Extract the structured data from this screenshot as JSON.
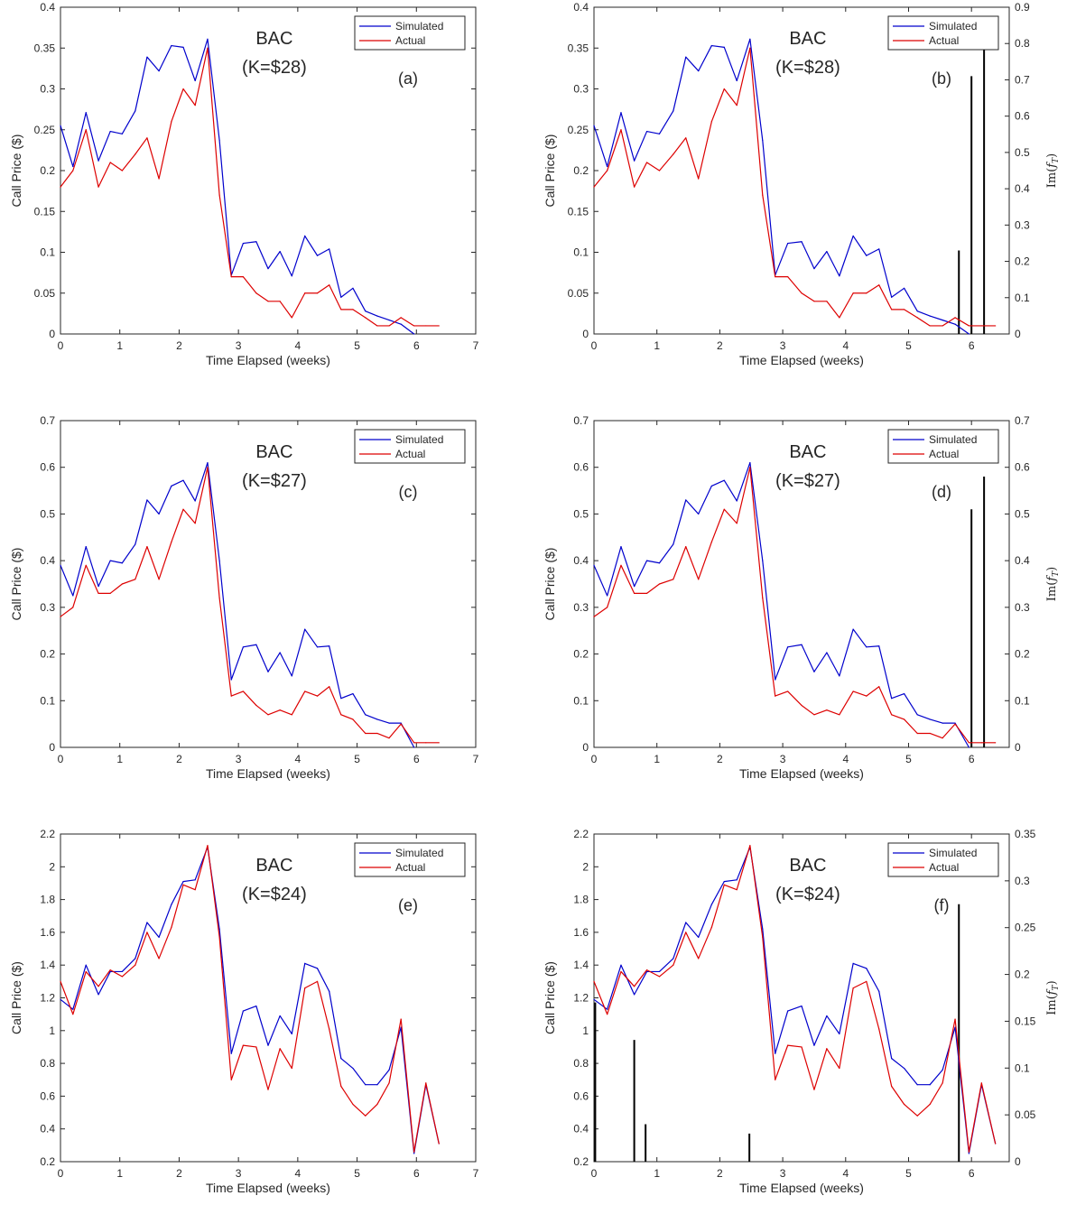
{
  "chart_data": [
    {
      "type": "line",
      "panel_label": "(a)",
      "title": "BAC",
      "subtitle": "(K=$28)",
      "xlabel": "Time Elapsed (weeks)",
      "ylabel": "Call Price ($)",
      "xlim": [
        0,
        7
      ],
      "ylim": [
        0,
        0.4
      ],
      "xticks": [
        "0",
        "1",
        "2",
        "3",
        "4",
        "5",
        "6",
        "7"
      ],
      "yticks": [
        "0",
        "0.05",
        "0.1",
        "0.15",
        "0.2",
        "0.25",
        "0.3",
        "0.35",
        "0.4"
      ],
      "legend_position": "top-right",
      "x": [
        0,
        0.21,
        0.43,
        0.64,
        0.84,
        1.04,
        1.26,
        1.46,
        1.66,
        1.87,
        2.07,
        2.27,
        2.48,
        2.68,
        2.88,
        3.08,
        3.3,
        3.5,
        3.7,
        3.9,
        4.12,
        4.33,
        4.53,
        4.73,
        4.93,
        5.14,
        5.34,
        5.54,
        5.74,
        5.96,
        6.16,
        6.38
      ],
      "series": [
        {
          "name": "Simulated",
          "color": "#0000cc",
          "values": [
            0.255,
            0.205,
            0.271,
            0.212,
            0.248,
            0.245,
            0.273,
            0.339,
            0.322,
            0.353,
            0.351,
            0.31,
            0.361,
            0.237,
            0.072,
            0.111,
            0.113,
            0.08,
            0.101,
            0.071,
            0.12,
            0.096,
            0.104,
            0.045,
            0.056,
            0.028,
            0.022,
            0.017,
            0.012,
            0.0,
            null,
            null
          ]
        },
        {
          "name": "Actual",
          "color": "#dd0000",
          "values": [
            0.18,
            0.2,
            0.25,
            0.18,
            0.21,
            0.2,
            0.22,
            0.24,
            0.19,
            0.26,
            0.3,
            0.28,
            0.35,
            0.17,
            0.07,
            0.07,
            0.05,
            0.04,
            0.04,
            0.02,
            0.05,
            0.05,
            0.06,
            0.03,
            0.03,
            0.02,
            0.01,
            0.01,
            0.02,
            0.01,
            0.01,
            0.01
          ]
        }
      ]
    },
    {
      "type": "line",
      "panel_label": "(b)",
      "title": "BAC",
      "subtitle": "(K=$28)",
      "xlabel": "Time Elapsed (weeks)",
      "ylabel": "Call Price ($)",
      "y2label": "Im(f_T)",
      "xlim": [
        0,
        6.6
      ],
      "ylim": [
        0,
        0.4
      ],
      "y2lim": [
        0,
        0.9
      ],
      "xticks": [
        "0",
        "1",
        "2",
        "3",
        "4",
        "5",
        "6"
      ],
      "yticks": [
        "0",
        "0.05",
        "0.1",
        "0.15",
        "0.2",
        "0.25",
        "0.3",
        "0.35",
        "0.4"
      ],
      "y2ticks": [
        "0",
        "0.1",
        "0.2",
        "0.3",
        "0.4",
        "0.5",
        "0.6",
        "0.7",
        "0.8",
        "0.9"
      ],
      "legend_position": "top-right",
      "x": [
        0,
        0.21,
        0.43,
        0.64,
        0.84,
        1.04,
        1.26,
        1.46,
        1.66,
        1.87,
        2.07,
        2.27,
        2.48,
        2.68,
        2.88,
        3.08,
        3.3,
        3.5,
        3.7,
        3.9,
        4.12,
        4.33,
        4.53,
        4.73,
        4.93,
        5.14,
        5.34,
        5.54,
        5.74,
        5.96,
        6.16,
        6.38
      ],
      "series": [
        {
          "name": "Simulated",
          "color": "#0000cc",
          "values": [
            0.255,
            0.205,
            0.271,
            0.212,
            0.248,
            0.245,
            0.273,
            0.339,
            0.322,
            0.353,
            0.351,
            0.31,
            0.361,
            0.237,
            0.072,
            0.111,
            0.113,
            0.08,
            0.101,
            0.071,
            0.12,
            0.096,
            0.104,
            0.045,
            0.056,
            0.028,
            0.022,
            0.017,
            0.012,
            0.0,
            null,
            null
          ]
        },
        {
          "name": "Actual",
          "color": "#dd0000",
          "values": [
            0.18,
            0.2,
            0.25,
            0.18,
            0.21,
            0.2,
            0.22,
            0.24,
            0.19,
            0.26,
            0.3,
            0.28,
            0.35,
            0.17,
            0.07,
            0.07,
            0.05,
            0.04,
            0.04,
            0.02,
            0.05,
            0.05,
            0.06,
            0.03,
            0.03,
            0.02,
            0.01,
            0.01,
            0.02,
            0.01,
            0.01,
            0.01
          ]
        }
      ],
      "stems": {
        "color": "#000000",
        "x": [
          5.8,
          6.0,
          6.2
        ],
        "values": [
          0.23,
          0.71,
          0.79
        ]
      }
    },
    {
      "type": "line",
      "panel_label": "(c)",
      "title": "BAC",
      "subtitle": "(K=$27)",
      "xlabel": "Time Elapsed (weeks)",
      "ylabel": "Call Price ($)",
      "xlim": [
        0,
        7
      ],
      "ylim": [
        0,
        0.7
      ],
      "xticks": [
        "0",
        "1",
        "2",
        "3",
        "4",
        "5",
        "6",
        "7"
      ],
      "yticks": [
        "0",
        "0.1",
        "0.2",
        "0.3",
        "0.4",
        "0.5",
        "0.6",
        "0.7"
      ],
      "legend_position": "top-right",
      "x": [
        0,
        0.21,
        0.43,
        0.64,
        0.84,
        1.04,
        1.26,
        1.46,
        1.66,
        1.87,
        2.07,
        2.27,
        2.48,
        2.68,
        2.88,
        3.08,
        3.3,
        3.5,
        3.7,
        3.9,
        4.12,
        4.33,
        4.53,
        4.73,
        4.93,
        5.14,
        5.34,
        5.54,
        5.74,
        5.96,
        6.16,
        6.38
      ],
      "series": [
        {
          "name": "Simulated",
          "color": "#0000cc",
          "values": [
            0.39,
            0.325,
            0.43,
            0.345,
            0.4,
            0.395,
            0.435,
            0.53,
            0.5,
            0.56,
            0.572,
            0.528,
            0.61,
            0.4,
            0.145,
            0.215,
            0.22,
            0.162,
            0.203,
            0.153,
            0.253,
            0.215,
            0.217,
            0.105,
            0.115,
            0.07,
            0.06,
            0.052,
            0.052,
            0.0,
            null,
            null
          ]
        },
        {
          "name": "Actual",
          "color": "#dd0000",
          "values": [
            0.28,
            0.3,
            0.39,
            0.33,
            0.33,
            0.35,
            0.36,
            0.43,
            0.36,
            0.44,
            0.51,
            0.48,
            0.6,
            0.32,
            0.11,
            0.12,
            0.09,
            0.07,
            0.08,
            0.07,
            0.12,
            0.11,
            0.13,
            0.07,
            0.06,
            0.03,
            0.03,
            0.02,
            0.05,
            0.01,
            0.01,
            0.01
          ]
        }
      ]
    },
    {
      "type": "line",
      "panel_label": "(d)",
      "title": "BAC",
      "subtitle": "(K=$27)",
      "xlabel": "Time Elapsed (weeks)",
      "ylabel": "Call Price ($)",
      "y2label": "Im(f_T)",
      "xlim": [
        0,
        6.6
      ],
      "ylim": [
        0,
        0.7
      ],
      "y2lim": [
        0,
        0.7
      ],
      "xticks": [
        "0",
        "1",
        "2",
        "3",
        "4",
        "5",
        "6"
      ],
      "yticks": [
        "0",
        "0.1",
        "0.2",
        "0.3",
        "0.4",
        "0.5",
        "0.6",
        "0.7"
      ],
      "y2ticks": [
        "0",
        "0.1",
        "0.2",
        "0.3",
        "0.4",
        "0.5",
        "0.6",
        "0.7"
      ],
      "legend_position": "top-right",
      "x": [
        0,
        0.21,
        0.43,
        0.64,
        0.84,
        1.04,
        1.26,
        1.46,
        1.66,
        1.87,
        2.07,
        2.27,
        2.48,
        2.68,
        2.88,
        3.08,
        3.3,
        3.5,
        3.7,
        3.9,
        4.12,
        4.33,
        4.53,
        4.73,
        4.93,
        5.14,
        5.34,
        5.54,
        5.74,
        5.96,
        6.16,
        6.38
      ],
      "series": [
        {
          "name": "Simulated",
          "color": "#0000cc",
          "values": [
            0.39,
            0.325,
            0.43,
            0.345,
            0.4,
            0.395,
            0.435,
            0.53,
            0.5,
            0.56,
            0.572,
            0.528,
            0.61,
            0.4,
            0.145,
            0.215,
            0.22,
            0.162,
            0.203,
            0.153,
            0.253,
            0.215,
            0.217,
            0.105,
            0.115,
            0.07,
            0.06,
            0.052,
            0.052,
            0.0,
            null,
            null
          ]
        },
        {
          "name": "Actual",
          "color": "#dd0000",
          "values": [
            0.28,
            0.3,
            0.39,
            0.33,
            0.33,
            0.35,
            0.36,
            0.43,
            0.36,
            0.44,
            0.51,
            0.48,
            0.6,
            0.32,
            0.11,
            0.12,
            0.09,
            0.07,
            0.08,
            0.07,
            0.12,
            0.11,
            0.13,
            0.07,
            0.06,
            0.03,
            0.03,
            0.02,
            0.05,
            0.01,
            0.01,
            0.01
          ]
        }
      ],
      "stems": {
        "color": "#000000",
        "x": [
          6.0,
          6.2
        ],
        "values": [
          0.51,
          0.58
        ]
      }
    },
    {
      "type": "line",
      "panel_label": "(e)",
      "title": "BAC",
      "subtitle": "(K=$24)",
      "xlabel": "Time Elapsed (weeks)",
      "ylabel": "Call Price ($)",
      "xlim": [
        0,
        7
      ],
      "ylim": [
        0.2,
        2.2
      ],
      "xticks": [
        "0",
        "1",
        "2",
        "3",
        "4",
        "5",
        "6",
        "7"
      ],
      "yticks": [
        "0.2",
        "0.4",
        "0.6",
        "0.8",
        "1",
        "1.2",
        "1.4",
        "1.6",
        "1.8",
        "2",
        "2.2"
      ],
      "legend_position": "top-right",
      "x": [
        0,
        0.21,
        0.43,
        0.64,
        0.84,
        1.04,
        1.26,
        1.46,
        1.66,
        1.87,
        2.07,
        2.27,
        2.48,
        2.68,
        2.88,
        3.08,
        3.3,
        3.5,
        3.7,
        3.9,
        4.12,
        4.33,
        4.53,
        4.73,
        4.93,
        5.14,
        5.34,
        5.54,
        5.74,
        5.96,
        6.16,
        6.38
      ],
      "series": [
        {
          "name": "Simulated",
          "color": "#0000cc",
          "values": [
            1.19,
            1.13,
            1.4,
            1.22,
            1.36,
            1.36,
            1.44,
            1.66,
            1.57,
            1.77,
            1.91,
            1.92,
            2.12,
            1.62,
            0.86,
            1.12,
            1.15,
            0.91,
            1.09,
            0.98,
            1.41,
            1.38,
            1.24,
            0.83,
            0.77,
            0.67,
            0.67,
            0.76,
            1.02,
            0.25,
            0.67,
            0.31
          ]
        },
        {
          "name": "Actual",
          "color": "#dd0000",
          "values": [
            1.3,
            1.1,
            1.36,
            1.27,
            1.37,
            1.33,
            1.4,
            1.6,
            1.44,
            1.63,
            1.89,
            1.86,
            2.13,
            1.57,
            0.7,
            0.91,
            0.9,
            0.64,
            0.89,
            0.77,
            1.26,
            1.3,
            1.01,
            0.66,
            0.55,
            0.48,
            0.55,
            0.68,
            1.07,
            0.26,
            0.68,
            0.31
          ]
        }
      ]
    },
    {
      "type": "line",
      "panel_label": "(f)",
      "title": "BAC",
      "subtitle": "(K=$24)",
      "xlabel": "Time Elapsed (weeks)",
      "ylabel": "Call Price ($)",
      "y2label": "Im(f_T)",
      "xlim": [
        0,
        6.6
      ],
      "ylim": [
        0.2,
        2.2
      ],
      "y2lim": [
        0,
        0.35
      ],
      "xticks": [
        "0",
        "1",
        "2",
        "3",
        "4",
        "5",
        "6"
      ],
      "yticks": [
        "0.2",
        "0.4",
        "0.6",
        "0.8",
        "1",
        "1.2",
        "1.4",
        "1.6",
        "1.8",
        "2",
        "2.2"
      ],
      "y2ticks": [
        "0",
        "0.05",
        "0.1",
        "0.15",
        "0.2",
        "0.25",
        "0.3",
        "0.35"
      ],
      "legend_position": "top-right",
      "x": [
        0,
        0.21,
        0.43,
        0.64,
        0.84,
        1.04,
        1.26,
        1.46,
        1.66,
        1.87,
        2.07,
        2.27,
        2.48,
        2.68,
        2.88,
        3.08,
        3.3,
        3.5,
        3.7,
        3.9,
        4.12,
        4.33,
        4.53,
        4.73,
        4.93,
        5.14,
        5.34,
        5.54,
        5.74,
        5.96,
        6.16,
        6.38
      ],
      "series": [
        {
          "name": "Simulated",
          "color": "#0000cc",
          "values": [
            1.19,
            1.13,
            1.4,
            1.22,
            1.36,
            1.36,
            1.44,
            1.66,
            1.57,
            1.77,
            1.91,
            1.92,
            2.12,
            1.62,
            0.86,
            1.12,
            1.15,
            0.91,
            1.09,
            0.98,
            1.41,
            1.38,
            1.24,
            0.83,
            0.77,
            0.67,
            0.67,
            0.76,
            1.02,
            0.25,
            0.67,
            0.31
          ]
        },
        {
          "name": "Actual",
          "color": "#dd0000",
          "values": [
            1.3,
            1.1,
            1.36,
            1.27,
            1.37,
            1.33,
            1.4,
            1.6,
            1.44,
            1.63,
            1.89,
            1.86,
            2.13,
            1.57,
            0.7,
            0.91,
            0.9,
            0.64,
            0.89,
            0.77,
            1.26,
            1.3,
            1.01,
            0.66,
            0.55,
            0.48,
            0.55,
            0.68,
            1.07,
            0.26,
            0.68,
            0.31
          ]
        }
      ],
      "stems": {
        "color": "#000000",
        "x": [
          0.02,
          0.64,
          0.82,
          2.47,
          5.8
        ],
        "values": [
          0.17,
          0.13,
          0.04,
          0.03,
          0.275
        ]
      }
    }
  ]
}
